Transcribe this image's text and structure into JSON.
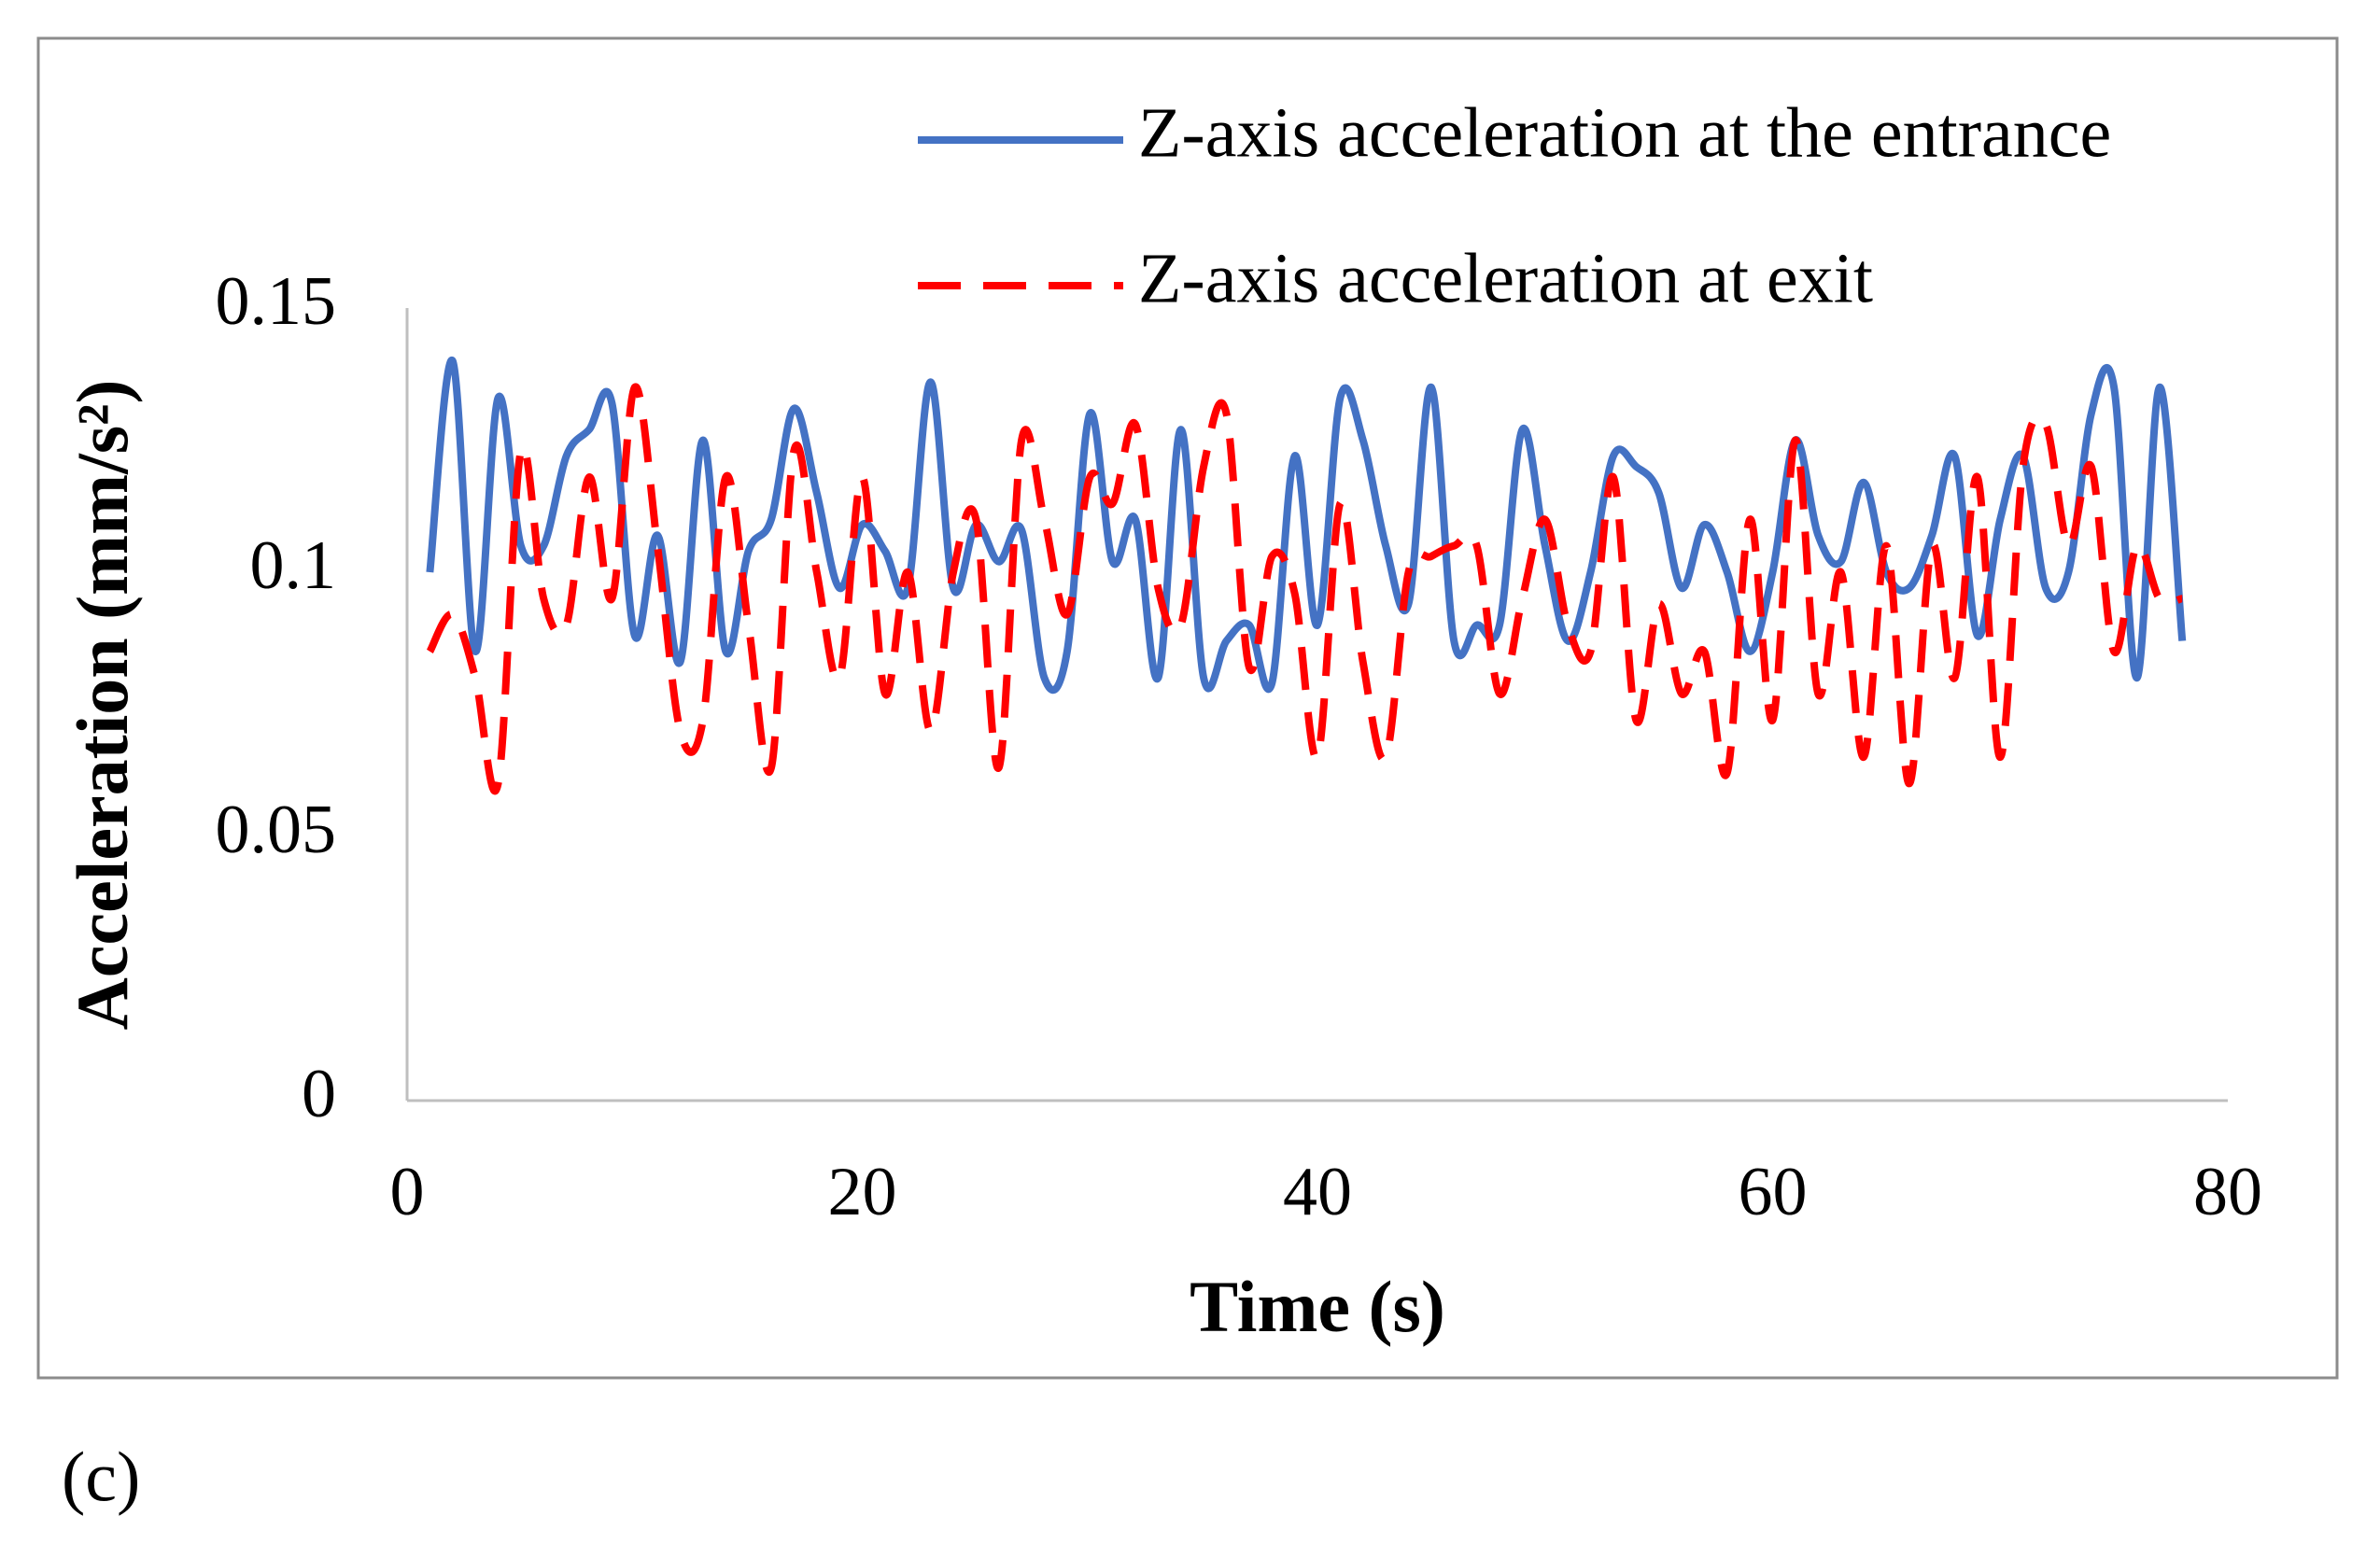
{
  "chart_data": {
    "type": "line",
    "x_label": "Time (s)",
    "y_label": "Acceleration (mm/s²)",
    "panel_label": "(c)",
    "xlim": [
      0,
      80
    ],
    "xticks": [
      0,
      20,
      40,
      60,
      80
    ],
    "ylim": [
      0,
      0.15
    ],
    "yticks": [
      0,
      0.05,
      0.1,
      0.15
    ],
    "grid": false,
    "legend": "top-right",
    "x": [
      1,
      2,
      3,
      4,
      5,
      6,
      7,
      8,
      9,
      10,
      11,
      12,
      13,
      14,
      15,
      16,
      17,
      18,
      19,
      20,
      21,
      22,
      23,
      24,
      25,
      26,
      27,
      28,
      29,
      30,
      31,
      32,
      33,
      34,
      35,
      36,
      37,
      38,
      39,
      40,
      41,
      42,
      43,
      44,
      45,
      46,
      47,
      48,
      49,
      50,
      51,
      52,
      53,
      54,
      55,
      56,
      57,
      58,
      59,
      60,
      61,
      62,
      63,
      64,
      65,
      66,
      67,
      68,
      69,
      70,
      71,
      72,
      73,
      74,
      75,
      76,
      77,
      78
    ],
    "series": [
      {
        "name": "Z-axis acceleration at the entrance",
        "color": "#4472c4",
        "dash": false,
        "values": [
          0.1,
          0.14,
          0.085,
          0.133,
          0.105,
          0.105,
          0.122,
          0.127,
          0.132,
          0.088,
          0.107,
          0.083,
          0.125,
          0.085,
          0.104,
          0.11,
          0.131,
          0.115,
          0.097,
          0.109,
          0.104,
          0.097,
          0.136,
          0.097,
          0.109,
          0.102,
          0.108,
          0.08,
          0.085,
          0.13,
          0.102,
          0.11,
          0.08,
          0.127,
          0.08,
          0.087,
          0.09,
          0.079,
          0.122,
          0.09,
          0.133,
          0.125,
          0.105,
          0.094,
          0.135,
          0.087,
          0.09,
          0.09,
          0.127,
          0.105,
          0.087,
          0.1,
          0.122,
          0.12,
          0.115,
          0.097,
          0.109,
          0.1,
          0.085,
          0.1,
          0.125,
          0.107,
          0.102,
          0.117,
          0.1,
          0.097,
          0.107,
          0.122,
          0.088,
          0.11,
          0.122,
          0.097,
          0.1,
          0.13,
          0.135,
          0.08,
          0.135,
          0.087
        ]
      },
      {
        "name": "Z-axis acceleration at exit",
        "color": "#ff0000",
        "dash": true,
        "values": [
          0.085,
          0.092,
          0.08,
          0.06,
          0.123,
          0.095,
          0.09,
          0.118,
          0.095,
          0.135,
          0.105,
          0.07,
          0.072,
          0.118,
          0.09,
          0.063,
          0.123,
          0.1,
          0.08,
          0.118,
          0.077,
          0.1,
          0.07,
          0.1,
          0.11,
          0.063,
          0.125,
          0.11,
          0.092,
          0.118,
          0.113,
          0.128,
          0.097,
          0.09,
          0.12,
          0.13,
          0.082,
          0.103,
          0.096,
          0.065,
          0.113,
          0.083,
          0.065,
          0.1,
          0.103,
          0.105,
          0.105,
          0.077,
          0.095,
          0.11,
          0.09,
          0.085,
          0.118,
          0.072,
          0.094,
          0.077,
          0.085,
          0.062,
          0.11,
          0.072,
          0.125,
          0.077,
          0.1,
          0.065,
          0.105,
          0.06,
          0.105,
          0.08,
          0.118,
          0.065,
          0.12,
          0.128,
          0.105,
          0.12,
          0.085,
          0.105,
          0.095,
          0.095
        ]
      }
    ]
  }
}
